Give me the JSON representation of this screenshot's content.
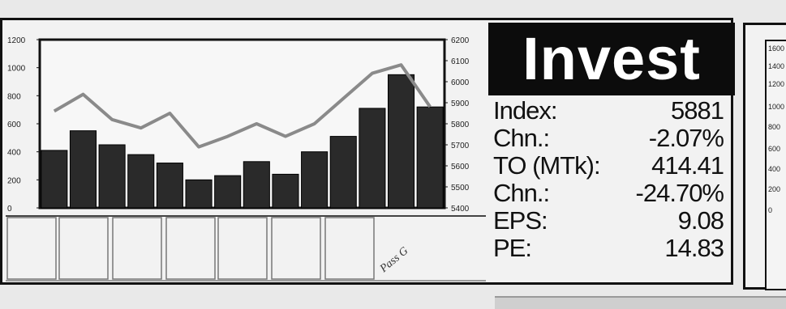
{
  "chart_data": {
    "type": "bar",
    "categories": [
      "",
      "",
      "",
      "",
      "",
      "",
      "",
      "",
      "",
      "",
      "",
      "",
      "",
      ""
    ],
    "series": [
      {
        "type": "bar",
        "axis": "left",
        "values": [
          410,
          550,
          450,
          380,
          320,
          200,
          230,
          330,
          240,
          400,
          510,
          710,
          950,
          720
        ]
      },
      {
        "type": "line",
        "axis": "right",
        "values": [
          5860,
          5940,
          5820,
          5780,
          5850,
          5690,
          5740,
          5800,
          5740,
          5800,
          5920,
          6040,
          6080,
          5881
        ]
      }
    ],
    "left_axis": {
      "ticks": [
        "1200",
        "1000",
        "800",
        "600",
        "400",
        "200",
        "0"
      ],
      "ylim": [
        0,
        1200
      ]
    },
    "right_axis": {
      "ticks": [
        "6200",
        "6100",
        "6000",
        "5900",
        "5800",
        "5700",
        "5600",
        "5500",
        "5400"
      ],
      "ylim": [
        5400,
        6200
      ]
    },
    "lower_annotation": "Pass G",
    "colors": {
      "bar": "#2a2a2a",
      "line": "#8a8a8a"
    }
  },
  "header": {
    "title": "Invest"
  },
  "stats": [
    {
      "label": "Index:",
      "value": "5881"
    },
    {
      "label": "Chn.:",
      "value": "-2.07%"
    },
    {
      "label": "TO (MTk):",
      "value": "414.41"
    },
    {
      "label": "Chn.:",
      "value": "-24.70%"
    },
    {
      "label": "EPS:",
      "value": "9.08"
    },
    {
      "label": "PE:",
      "value": "14.83"
    }
  ],
  "side_chart": {
    "ticks": [
      "1600",
      "1400",
      "1200",
      "1000",
      "800",
      "600",
      "400",
      "200",
      "0"
    ]
  }
}
